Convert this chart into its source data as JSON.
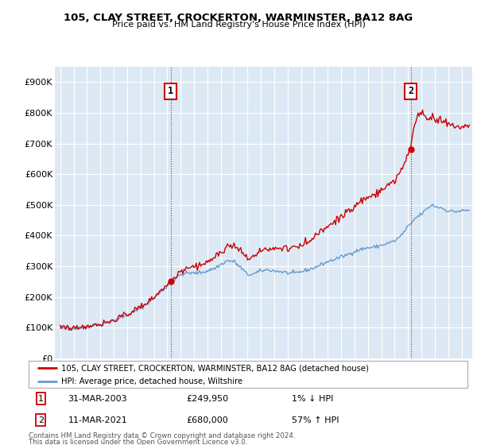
{
  "title": "105, CLAY STREET, CROCKERTON, WARMINSTER, BA12 8AG",
  "subtitle": "Price paid vs. HM Land Registry's House Price Index (HPI)",
  "ylabel_ticks": [
    "£0",
    "£100K",
    "£200K",
    "£300K",
    "£400K",
    "£500K",
    "£600K",
    "£700K",
    "£800K",
    "£900K"
  ],
  "ytick_values": [
    0,
    100000,
    200000,
    300000,
    400000,
    500000,
    600000,
    700000,
    800000,
    900000
  ],
  "ylim": [
    0,
    950000
  ],
  "legend_line1": "105, CLAY STREET, CROCKERTON, WARMINSTER, BA12 8AG (detached house)",
  "legend_line2": "HPI: Average price, detached house, Wiltshire",
  "annotation1_date": "31-MAR-2003",
  "annotation1_price": "£249,950",
  "annotation1_hpi": "1% ↓ HPI",
  "annotation2_date": "11-MAR-2021",
  "annotation2_price": "£680,000",
  "annotation2_hpi": "57% ↑ HPI",
  "footnote1": "Contains HM Land Registry data © Crown copyright and database right 2024.",
  "footnote2": "This data is licensed under the Open Government Licence v3.0.",
  "line_color_red": "#cc0000",
  "line_color_blue": "#6699cc",
  "plot_bg_color": "#dce9f5",
  "background_color": "#ffffff",
  "grid_color": "#ffffff",
  "sale1_x": 2003.25,
  "sale1_price": 249950,
  "sale2_x": 2021.2,
  "sale2_price": 680000
}
